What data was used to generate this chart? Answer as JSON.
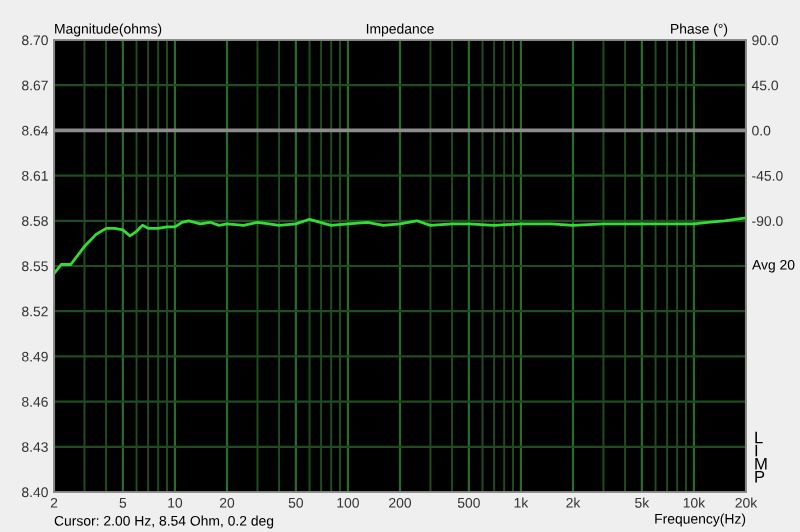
{
  "chart_data": {
    "type": "line",
    "title": "Impedance",
    "ylabel": "Magnitude(ohms)",
    "y2label": "Phase (°)",
    "xlabel": "Frequency(Hz)",
    "annotations": [
      "Cursor: 2.00 Hz, 8.54 Ohm, 0.2 deg",
      "Avg 20",
      "L\nI\nM\nP"
    ],
    "log": "x",
    "grid": true,
    "legend": false,
    "xlim": [
      2,
      20000
    ],
    "xticks": [
      2,
      5,
      10,
      20,
      50,
      100,
      200,
      500,
      {
        "value": 1000,
        "label": "1k"
      },
      {
        "value": 2000,
        "label": "2k"
      },
      {
        "value": 5000,
        "label": "5k"
      },
      {
        "value": 10000,
        "label": "10k"
      },
      {
        "value": 20000,
        "label": "20k"
      }
    ],
    "ylim": [
      8.4,
      8.7
    ],
    "yticks": [
      {
        "value": 8.4,
        "label": "8.40"
      },
      8.43,
      8.46,
      8.49,
      8.52,
      8.55,
      8.58,
      8.61,
      8.64,
      8.67,
      {
        "value": 8.7,
        "label": "8.70"
      }
    ],
    "y2lim": [
      -360,
      90
    ],
    "y2ticks": [
      {
        "value": 90,
        "label": "90.0"
      },
      {
        "value": 45,
        "label": "45.0"
      },
      {
        "value": 0,
        "label": "0.0"
      },
      {
        "value": -45,
        "label": "-45.0"
      },
      {
        "value": -90,
        "label": "-90.0"
      }
    ],
    "series": [
      {
        "color": "#33dd33",
        "axis": "y",
        "x": [
          2,
          2.1,
          2.2,
          2.5,
          2.7,
          3,
          3.5,
          4,
          4.5,
          5,
          5.5,
          6,
          6.5,
          7,
          8,
          9,
          10,
          11,
          12,
          13,
          14,
          16,
          18,
          20,
          25,
          30,
          35,
          40,
          50,
          60,
          80,
          100,
          130,
          160,
          200,
          250,
          300,
          400,
          500,
          700,
          1000,
          1500,
          2000,
          3000,
          5000,
          7000,
          10000,
          12000,
          15000,
          20000
        ],
        "values": [
          8.545,
          8.548,
          8.551,
          8.551,
          8.556,
          8.563,
          8.571,
          8.575,
          8.575,
          8.574,
          8.57,
          8.573,
          8.577,
          8.575,
          8.575,
          8.576,
          8.576,
          8.579,
          8.58,
          8.579,
          8.578,
          8.579,
          8.577,
          8.578,
          8.577,
          8.579,
          8.578,
          8.577,
          8.578,
          8.581,
          8.577,
          8.578,
          8.579,
          8.577,
          8.578,
          8.58,
          8.577,
          8.578,
          8.578,
          8.577,
          8.578,
          8.578,
          8.577,
          8.578,
          8.578,
          8.578,
          8.578,
          8.579,
          8.58,
          8.582
        ]
      },
      {
        "color": "#8c8c8c",
        "axis": "y2",
        "x": [
          2,
          20000
        ],
        "values": [
          0,
          0
        ]
      }
    ]
  }
}
